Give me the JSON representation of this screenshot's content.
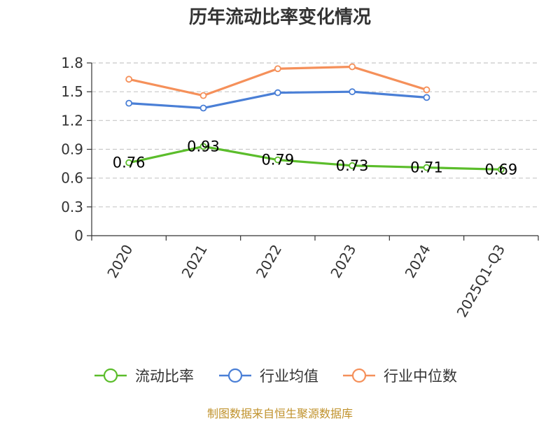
{
  "chart_data": {
    "type": "line",
    "title": "历年流动比率变化情况",
    "categories": [
      "2020",
      "2021",
      "2022",
      "2023",
      "2024",
      "2025Q1-Q3"
    ],
    "yticks": [
      "0",
      "0.3",
      "0.6",
      "0.9",
      "1.2",
      "1.5",
      "1.8"
    ],
    "ylim": [
      0,
      1.8
    ],
    "grid": true,
    "legend_position": "bottom",
    "series": [
      {
        "name": "流动比率",
        "color": "#5bbd2b",
        "values": [
          0.76,
          0.93,
          0.79,
          0.73,
          0.71,
          0.69
        ],
        "labels": [
          "0.76",
          "0.93",
          "0.79",
          "0.73",
          "0.71",
          "0.69"
        ]
      },
      {
        "name": "行业均值",
        "color": "#4a7fd6",
        "values": [
          1.38,
          1.33,
          1.49,
          1.5,
          1.44,
          null
        ]
      },
      {
        "name": "行业中位数",
        "color": "#f5905a",
        "values": [
          1.63,
          1.46,
          1.74,
          1.76,
          1.52,
          null
        ]
      }
    ]
  },
  "footer": {
    "source": "制图数据来自恒生聚源数据库"
  }
}
